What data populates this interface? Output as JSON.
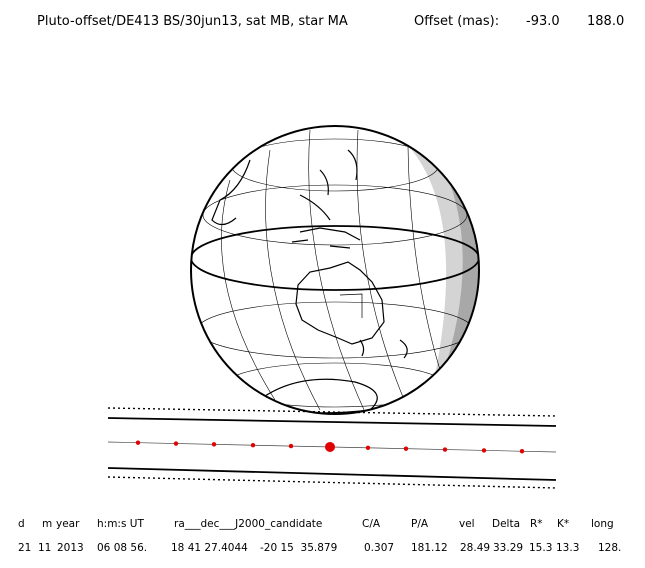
{
  "header": {
    "title": "Pluto-offset/DE413 BS/30jun13, sat MB, star MA",
    "offset_label": "Offset (mas):",
    "offset_x": "-93.0",
    "offset_y": "188.0"
  },
  "table": {
    "columns": [
      "d",
      "m",
      "year",
      "h:m:s UT",
      "ra___dec___J2000_candidate",
      "C/A",
      "P/A",
      "vel",
      "Delta",
      "R*",
      "K*",
      "long"
    ],
    "values": [
      "21",
      "11",
      "2013",
      "06 08 56.",
      "18 41 27.4044",
      "-20 15  35.879",
      "0.307",
      "181.12",
      "28.49",
      "33.29",
      "15.3",
      "13.3",
      "128."
    ]
  },
  "colors": {
    "ink": "#000000",
    "track": "#e00000",
    "shadow_light": "#d4d4d4",
    "shadow_dark": "#a8a8a8"
  }
}
